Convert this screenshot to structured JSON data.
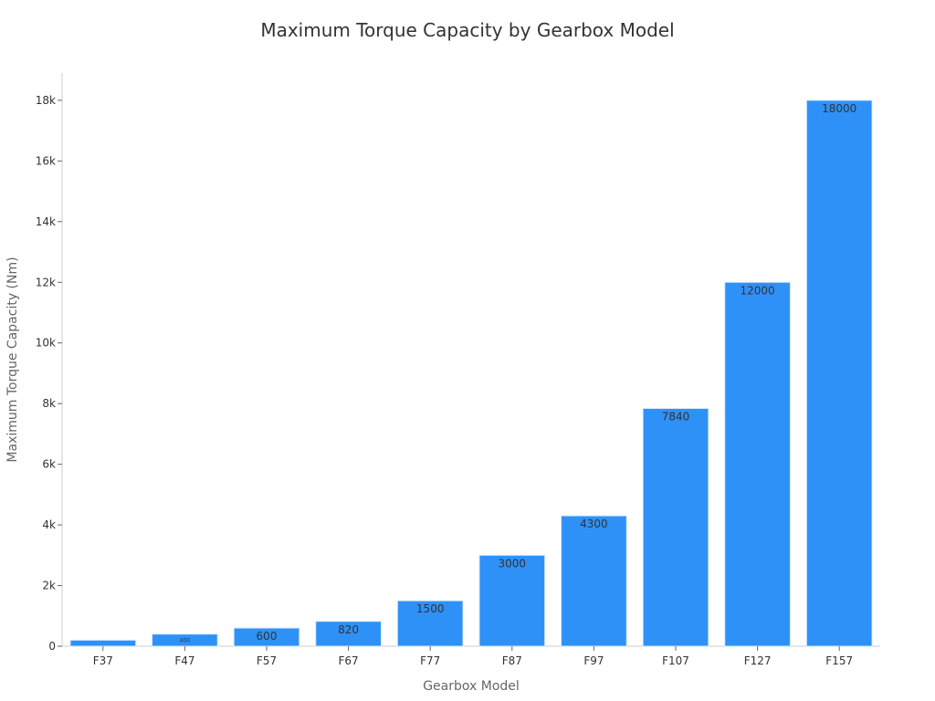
{
  "chart_data": {
    "type": "bar",
    "title": "Maximum Torque Capacity by Gearbox Model",
    "xlabel": "Gearbox Model",
    "ylabel": "Maximum Torque Capacity (Nm)",
    "categories": [
      "F37",
      "F47",
      "F57",
      "F67",
      "F77",
      "F87",
      "F97",
      "F107",
      "F127",
      "F157"
    ],
    "values": [
      200,
      400,
      600,
      820,
      1500,
      3000,
      4300,
      7840,
      12000,
      18000
    ],
    "data_labels": [
      "",
      "400",
      "600",
      "820",
      "1500",
      "3000",
      "4300",
      "7840",
      "12000",
      "18000"
    ],
    "ylim": [
      0,
      18900
    ],
    "yticks": [
      0,
      2000,
      4000,
      6000,
      8000,
      10000,
      12000,
      14000,
      16000,
      18000
    ],
    "ytick_labels": [
      "0",
      "2k",
      "4k",
      "6k",
      "8k",
      "10k",
      "12k",
      "14k",
      "16k",
      "18k"
    ],
    "bar_color": "#2e91f8",
    "grid": false,
    "legend": "none"
  }
}
